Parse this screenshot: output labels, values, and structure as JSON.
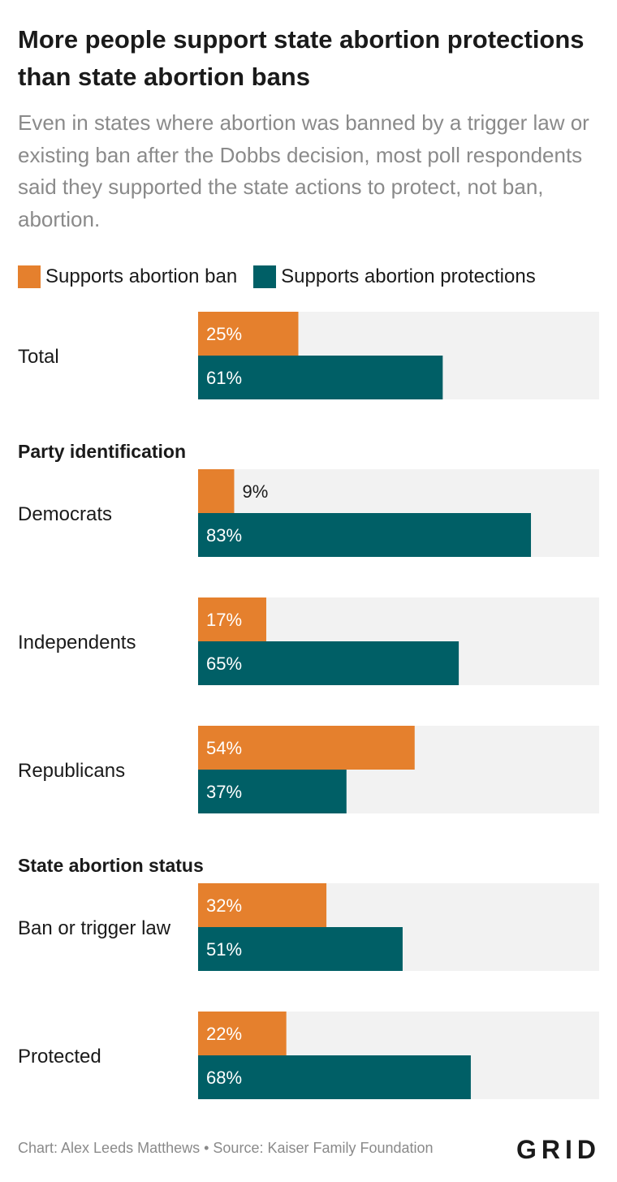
{
  "title": "More people support state abortion protections than state abortion bans",
  "subtitle": "Even in states where abortion was banned by a trigger law or existing ban after the Dobbs decision, most poll respondents said they supported the state actions to protect, not ban, abortion.",
  "legend": {
    "ban_label": "Supports abortion ban",
    "protect_label": "Supports abortion protections"
  },
  "colors": {
    "ban": "#e5802d",
    "protect": "#005f66",
    "track": "#f2f2f2"
  },
  "footer": "Chart: Alex Leeds Matthews • Source: Kaiser Family Foundation",
  "logo": "GRID",
  "chart_data": {
    "type": "bar",
    "orientation": "horizontal",
    "xlim": [
      0,
      100
    ],
    "series": [
      {
        "name": "Supports abortion ban",
        "values": [
          25,
          9,
          17,
          54,
          32,
          22
        ]
      },
      {
        "name": "Supports abortion protections",
        "values": [
          61,
          83,
          65,
          37,
          51,
          68
        ]
      }
    ],
    "categories": [
      "Total",
      "Democrats",
      "Independents",
      "Republicans",
      "Ban or trigger law",
      "Protected"
    ],
    "groups": [
      {
        "header": "",
        "categories": [
          "Total"
        ]
      },
      {
        "header": "Party identification",
        "categories": [
          "Democrats",
          "Independents",
          "Republicans"
        ]
      },
      {
        "header": "State abortion status",
        "categories": [
          "Ban or trigger law",
          "Protected"
        ]
      }
    ],
    "value_suffix": "%"
  }
}
